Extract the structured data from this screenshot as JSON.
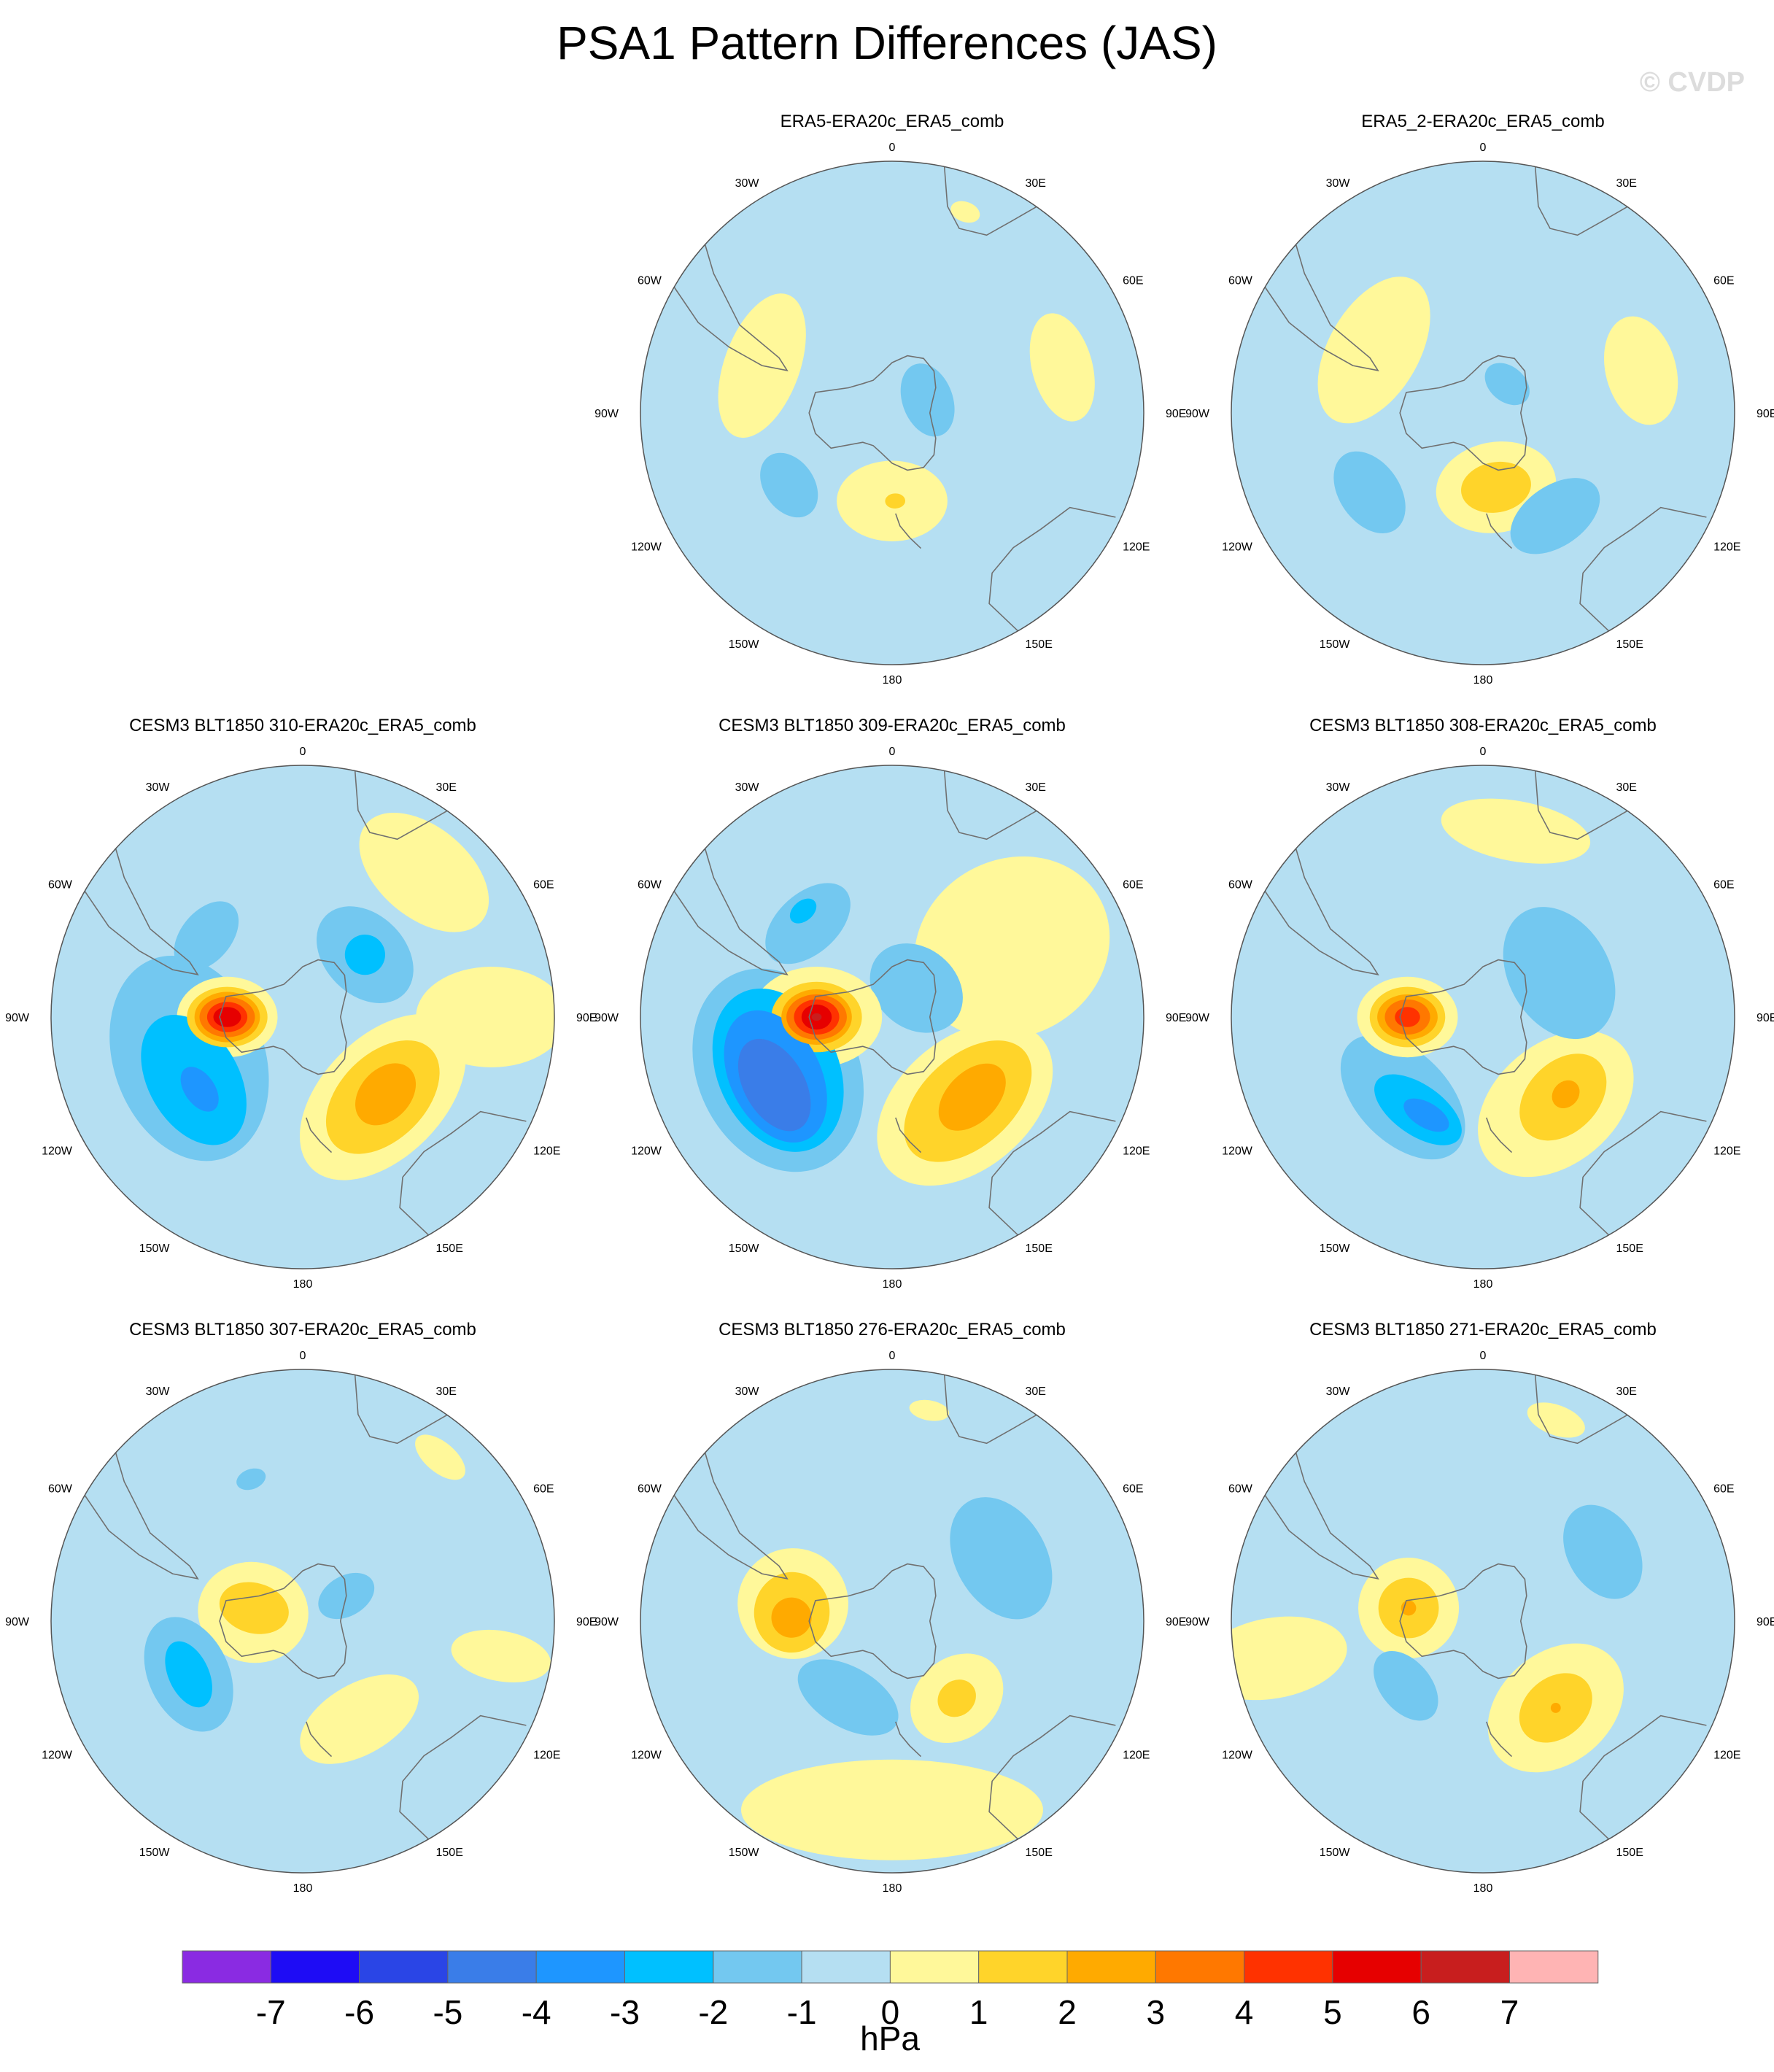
{
  "title": "PSA1 Pattern Differences (JAS)",
  "watermark": "© CVDP",
  "longitude_labels": [
    "0",
    "30E",
    "60E",
    "90E",
    "120E",
    "150E",
    "180",
    "150W",
    "120W",
    "90W",
    "60W",
    "30W"
  ],
  "colors": {
    "ocean": "#b5dff2",
    "coast": "#707070",
    "border": "#555555"
  },
  "colorbar": {
    "units": "hPa",
    "colors": [
      "#8a2be2",
      "#1e0cf5",
      "#2a45e6",
      "#3a7de8",
      "#1e96ff",
      "#00c0ff",
      "#73c8f0",
      "#b5dff2",
      "#fff89a",
      "#ffd42a",
      "#ffaa00",
      "#ff7800",
      "#ff3200",
      "#e60000",
      "#c81e1e",
      "#ffb4b4"
    ],
    "labels": [
      "-7",
      "-6",
      "-5",
      "-4",
      "-3",
      "-2",
      "-1",
      "0",
      "1",
      "2",
      "3",
      "4",
      "5",
      "6",
      "7"
    ]
  },
  "panels": [
    {
      "id": "p1",
      "title": "ERA5-ERA20c_ERA5_comb",
      "row": 0,
      "col": 1,
      "blobs": [
        {
          "lon": 290,
          "r": 0.55,
          "level": 1,
          "rx": 0.3,
          "ry": 0.15,
          "rot": 0
        },
        {
          "lon": 75,
          "r": 0.7,
          "level": 1,
          "rx": 0.22,
          "ry": 0.12,
          "rot": 0
        },
        {
          "lon": 20,
          "r": 0.85,
          "level": 1,
          "rx": 0.06,
          "ry": 0.04,
          "rot": 0
        },
        {
          "lon": 180,
          "r": 0.35,
          "level": 1,
          "rx": 0.22,
          "ry": 0.16,
          "rot": 0
        },
        {
          "lon": 178,
          "r": 0.35,
          "level": 2,
          "rx": 0.04,
          "ry": 0.03,
          "rot": 0
        },
        {
          "lon": 235,
          "r": 0.5,
          "level": -1,
          "rx": 0.14,
          "ry": 0.1,
          "rot": 0
        },
        {
          "lon": 70,
          "r": 0.15,
          "level": -1,
          "rx": 0.15,
          "ry": 0.1,
          "rot": 0
        }
      ]
    },
    {
      "id": "p2",
      "title": "ERA5_2-ERA20c_ERA5_comb",
      "row": 0,
      "col": 2,
      "blobs": [
        {
          "lon": 300,
          "r": 0.5,
          "level": 1,
          "rx": 0.32,
          "ry": 0.18,
          "rot": 0
        },
        {
          "lon": 75,
          "r": 0.65,
          "level": 1,
          "rx": 0.22,
          "ry": 0.14,
          "rot": 0
        },
        {
          "lon": 170,
          "r": 0.3,
          "level": 1,
          "rx": 0.24,
          "ry": 0.18,
          "rot": 0
        },
        {
          "lon": 170,
          "r": 0.3,
          "level": 2,
          "rx": 0.14,
          "ry": 0.1,
          "rot": 0
        },
        {
          "lon": 235,
          "r": 0.55,
          "level": -1,
          "rx": 0.18,
          "ry": 0.12,
          "rot": 0
        },
        {
          "lon": 145,
          "r": 0.5,
          "level": -1,
          "rx": 0.2,
          "ry": 0.12,
          "rot": 0
        },
        {
          "lon": 40,
          "r": 0.15,
          "level": -1,
          "rx": 0.1,
          "ry": 0.07,
          "rot": 0
        }
      ]
    },
    {
      "id": "p3",
      "title": "CESM3 BLT1850 310-ERA20c_ERA5_comb",
      "row": 1,
      "col": 0,
      "blobs": [
        {
          "lon": 40,
          "r": 0.75,
          "level": 1,
          "rx": 0.3,
          "ry": 0.18,
          "rot": 0
        },
        {
          "lon": 90,
          "r": 0.75,
          "level": 1,
          "rx": 0.2,
          "ry": 0.3,
          "rot": 0
        },
        {
          "lon": 135,
          "r": 0.45,
          "level": 1,
          "rx": 0.4,
          "ry": 0.24,
          "rot": 0
        },
        {
          "lon": 135,
          "r": 0.45,
          "level": 2,
          "rx": 0.27,
          "ry": 0.17,
          "rot": 0
        },
        {
          "lon": 133,
          "r": 0.45,
          "level": 3,
          "rx": 0.14,
          "ry": 0.1,
          "rot": 0
        },
        {
          "lon": 250,
          "r": 0.48,
          "level": -1,
          "rx": 0.42,
          "ry": 0.3,
          "rot": 0
        },
        {
          "lon": 240,
          "r": 0.5,
          "level": -2,
          "rx": 0.28,
          "ry": 0.18,
          "rot": 0
        },
        {
          "lon": 235,
          "r": 0.5,
          "level": -3,
          "rx": 0.1,
          "ry": 0.06,
          "rot": 0
        },
        {
          "lon": 310,
          "r": 0.5,
          "level": -1,
          "rx": 0.16,
          "ry": 0.1,
          "rot": 0
        },
        {
          "lon": 45,
          "r": 0.35,
          "level": -1,
          "rx": 0.22,
          "ry": 0.16,
          "rot": 0
        },
        {
          "lon": 45,
          "r": 0.35,
          "level": -2,
          "rx": 0.08,
          "ry": 0.08,
          "rot": 0
        },
        {
          "lon": 270,
          "r": 0.3,
          "level": 1,
          "rx": 0.16,
          "ry": 0.2,
          "rot": 0
        },
        {
          "lon": 270,
          "r": 0.3,
          "level": 2,
          "rx": 0.12,
          "ry": 0.16,
          "rot": 0
        },
        {
          "lon": 270,
          "r": 0.3,
          "level": 3,
          "rx": 0.1,
          "ry": 0.13,
          "rot": 0
        },
        {
          "lon": 270,
          "r": 0.3,
          "level": 4,
          "rx": 0.08,
          "ry": 0.11,
          "rot": 0
        },
        {
          "lon": 270,
          "r": 0.3,
          "level": 5,
          "rx": 0.06,
          "ry": 0.08,
          "rot": 0
        },
        {
          "lon": 270,
          "r": 0.3,
          "level": 6,
          "rx": 0.04,
          "ry": 0.055,
          "rot": 0
        }
      ]
    },
    {
      "id": "p4",
      "title": "CESM3 BLT1850 309-ERA20c_ERA5_comb",
      "row": 1,
      "col": 1,
      "blobs": [
        {
          "lon": 60,
          "r": 0.55,
          "level": 1,
          "rx": 0.35,
          "ry": 0.4,
          "rot": 0
        },
        {
          "lon": 140,
          "r": 0.45,
          "level": 1,
          "rx": 0.4,
          "ry": 0.26,
          "rot": 0
        },
        {
          "lon": 138,
          "r": 0.45,
          "level": 2,
          "rx": 0.3,
          "ry": 0.18,
          "rot": 0
        },
        {
          "lon": 135,
          "r": 0.45,
          "level": 3,
          "rx": 0.16,
          "ry": 0.1,
          "rot": 0
        },
        {
          "lon": 245,
          "r": 0.5,
          "level": -1,
          "rx": 0.42,
          "ry": 0.32,
          "rot": 0
        },
        {
          "lon": 245,
          "r": 0.5,
          "level": -2,
          "rx": 0.34,
          "ry": 0.24,
          "rot": 0
        },
        {
          "lon": 243,
          "r": 0.52,
          "level": -3,
          "rx": 0.28,
          "ry": 0.18,
          "rot": 0
        },
        {
          "lon": 240,
          "r": 0.54,
          "level": -4,
          "rx": 0.2,
          "ry": 0.12,
          "rot": 0
        },
        {
          "lon": 318,
          "r": 0.5,
          "level": -1,
          "rx": 0.2,
          "ry": 0.12,
          "rot": 0
        },
        {
          "lon": 320,
          "r": 0.55,
          "level": -2,
          "rx": 0.06,
          "ry": 0.04,
          "rot": 0
        },
        {
          "lon": 40,
          "r": 0.15,
          "level": -1,
          "rx": 0.2,
          "ry": 0.16,
          "rot": 0
        },
        {
          "lon": 270,
          "r": 0.3,
          "level": 1,
          "rx": 0.2,
          "ry": 0.26,
          "rot": 0
        },
        {
          "lon": 270,
          "r": 0.3,
          "level": 2,
          "rx": 0.14,
          "ry": 0.18,
          "rot": 0
        },
        {
          "lon": 270,
          "r": 0.3,
          "level": 3,
          "rx": 0.11,
          "ry": 0.14,
          "rot": 0
        },
        {
          "lon": 270,
          "r": 0.3,
          "level": 4,
          "rx": 0.09,
          "ry": 0.12,
          "rot": 0
        },
        {
          "lon": 270,
          "r": 0.3,
          "level": 5,
          "rx": 0.07,
          "ry": 0.09,
          "rot": 0
        },
        {
          "lon": 270,
          "r": 0.3,
          "level": 6,
          "rx": 0.05,
          "ry": 0.06,
          "rot": 0
        },
        {
          "lon": 270,
          "r": 0.3,
          "level": 7,
          "rx": 0.015,
          "ry": 0.02,
          "rot": 0
        }
      ]
    },
    {
      "id": "p5",
      "title": "CESM3 BLT1850 308-ERA20c_ERA5_comb",
      "row": 1,
      "col": 2,
      "blobs": [
        {
          "lon": 10,
          "r": 0.75,
          "level": 1,
          "rx": 0.3,
          "ry": 0.12,
          "rot": 0
        },
        {
          "lon": 140,
          "r": 0.45,
          "level": 1,
          "rx": 0.35,
          "ry": 0.24,
          "rot": 0
        },
        {
          "lon": 135,
          "r": 0.45,
          "level": 2,
          "rx": 0.2,
          "ry": 0.14,
          "rot": 0
        },
        {
          "lon": 133,
          "r": 0.45,
          "level": 3,
          "rx": 0.06,
          "ry": 0.05,
          "rot": 0
        },
        {
          "lon": 225,
          "r": 0.45,
          "level": -1,
          "rx": 0.3,
          "ry": 0.18,
          "rot": 0
        },
        {
          "lon": 215,
          "r": 0.45,
          "level": -2,
          "rx": 0.2,
          "ry": 0.1,
          "rot": 0
        },
        {
          "lon": 210,
          "r": 0.45,
          "level": -3,
          "rx": 0.1,
          "ry": 0.05,
          "rot": 0
        },
        {
          "lon": 60,
          "r": 0.35,
          "level": -1,
          "rx": 0.28,
          "ry": 0.2,
          "rot": 0
        },
        {
          "lon": 270,
          "r": 0.3,
          "level": 1,
          "rx": 0.16,
          "ry": 0.2,
          "rot": 0
        },
        {
          "lon": 270,
          "r": 0.3,
          "level": 2,
          "rx": 0.12,
          "ry": 0.15,
          "rot": 0
        },
        {
          "lon": 270,
          "r": 0.3,
          "level": 3,
          "rx": 0.09,
          "ry": 0.12,
          "rot": 0
        },
        {
          "lon": 270,
          "r": 0.3,
          "level": 4,
          "rx": 0.07,
          "ry": 0.09,
          "rot": 0
        },
        {
          "lon": 270,
          "r": 0.3,
          "level": 5,
          "rx": 0.04,
          "ry": 0.05,
          "rot": 0
        }
      ]
    },
    {
      "id": "p6",
      "title": "CESM3 BLT1850 307-ERA20c_ERA5_comb",
      "row": 2,
      "col": 0,
      "blobs": [
        {
          "lon": 40,
          "r": 0.85,
          "level": 1,
          "rx": 0.12,
          "ry": 0.06,
          "rot": 0
        },
        {
          "lon": 100,
          "r": 0.8,
          "level": 1,
          "rx": 0.1,
          "ry": 0.2,
          "rot": 0
        },
        {
          "lon": 150,
          "r": 0.45,
          "level": 1,
          "rx": 0.26,
          "ry": 0.14,
          "rot": 0
        },
        {
          "lon": 280,
          "r": 0.2,
          "level": 1,
          "rx": 0.2,
          "ry": 0.22,
          "rot": 0
        },
        {
          "lon": 285,
          "r": 0.2,
          "level": 2,
          "rx": 0.1,
          "ry": 0.14,
          "rot": 0
        },
        {
          "lon": 245,
          "r": 0.5,
          "level": -1,
          "rx": 0.24,
          "ry": 0.16,
          "rot": 0
        },
        {
          "lon": 245,
          "r": 0.5,
          "level": -2,
          "rx": 0.14,
          "ry": 0.08,
          "rot": 0
        },
        {
          "lon": 340,
          "r": 0.6,
          "level": -1,
          "rx": 0.06,
          "ry": 0.04,
          "rot": 0
        },
        {
          "lon": 60,
          "r": 0.2,
          "level": -1,
          "rx": 0.08,
          "ry": 0.12,
          "rot": 0
        }
      ]
    },
    {
      "id": "p7",
      "title": "CESM3 BLT1850 276-ERA20c_ERA5_comb",
      "row": 2,
      "col": 1,
      "blobs": [
        {
          "lon": 10,
          "r": 0.85,
          "level": 1,
          "rx": 0.08,
          "ry": 0.04,
          "rot": 0
        },
        {
          "lon": 180,
          "r": 0.75,
          "level": 1,
          "rx": 0.6,
          "ry": 0.2,
          "rot": 0
        },
        {
          "lon": 140,
          "r": 0.4,
          "level": 1,
          "rx": 0.2,
          "ry": 0.16,
          "rot": 0
        },
        {
          "lon": 140,
          "r": 0.4,
          "level": 2,
          "rx": 0.08,
          "ry": 0.07,
          "rot": 0
        },
        {
          "lon": 280,
          "r": 0.4,
          "level": 1,
          "rx": 0.22,
          "ry": 0.22,
          "rot": 0
        },
        {
          "lon": 275,
          "r": 0.4,
          "level": 2,
          "rx": 0.16,
          "ry": 0.15,
          "rot": 0
        },
        {
          "lon": 272,
          "r": 0.4,
          "level": 3,
          "rx": 0.08,
          "ry": 0.08,
          "rot": 0
        },
        {
          "lon": 210,
          "r": 0.35,
          "level": -1,
          "rx": 0.22,
          "ry": 0.12,
          "rot": 0
        },
        {
          "lon": 60,
          "r": 0.5,
          "level": -1,
          "rx": 0.26,
          "ry": 0.18,
          "rot": 0
        }
      ]
    },
    {
      "id": "p8",
      "title": "CESM3 BLT1850 271-ERA20c_ERA5_comb",
      "row": 2,
      "col": 2,
      "blobs": [
        {
          "lon": 20,
          "r": 0.85,
          "level": 1,
          "rx": 0.12,
          "ry": 0.06,
          "rot": 0
        },
        {
          "lon": 260,
          "r": 0.85,
          "level": 1,
          "rx": 0.16,
          "ry": 0.3,
          "rot": 0
        },
        {
          "lon": 140,
          "r": 0.45,
          "level": 1,
          "rx": 0.3,
          "ry": 0.22,
          "rot": 0
        },
        {
          "lon": 140,
          "r": 0.45,
          "level": 2,
          "rx": 0.16,
          "ry": 0.12,
          "rot": 0
        },
        {
          "lon": 140,
          "r": 0.45,
          "level": 3,
          "rx": 0.02,
          "ry": 0.02,
          "rot": 0
        },
        {
          "lon": 280,
          "r": 0.3,
          "level": 1,
          "rx": 0.2,
          "ry": 0.2,
          "rot": 0
        },
        {
          "lon": 280,
          "r": 0.3,
          "level": 2,
          "rx": 0.12,
          "ry": 0.12,
          "rot": 0
        },
        {
          "lon": 280,
          "r": 0.3,
          "level": 3,
          "rx": 0.03,
          "ry": 0.03,
          "rot": 0
        },
        {
          "lon": 230,
          "r": 0.4,
          "level": -1,
          "rx": 0.16,
          "ry": 0.1,
          "rot": 0
        },
        {
          "lon": 60,
          "r": 0.55,
          "level": -1,
          "rx": 0.2,
          "ry": 0.14,
          "rot": 0
        }
      ]
    }
  ]
}
